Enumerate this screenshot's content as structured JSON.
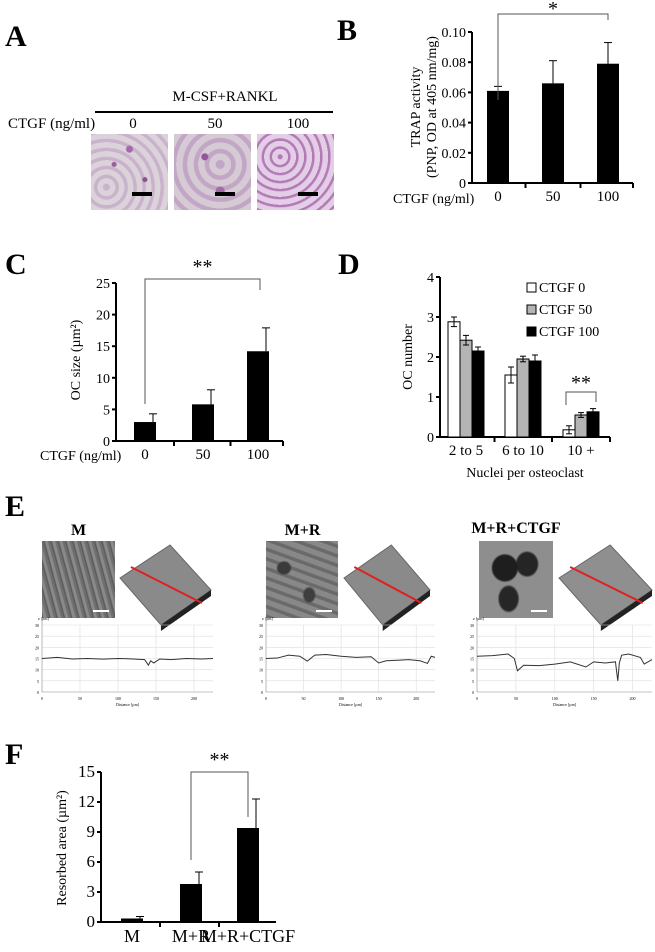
{
  "panel_labels": {
    "a": "A",
    "b": "B",
    "c": "C",
    "d": "D",
    "e": "E",
    "f": "F"
  },
  "panel_a": {
    "header": "M-CSF+RANKL",
    "row_label": "CTGF (ng/ml)",
    "columns": [
      "0",
      "50",
      "100"
    ]
  },
  "panel_e": {
    "groups": [
      "M",
      "M+R",
      "M+R+CTGF"
    ],
    "profile_ylabel": "z [µm]",
    "profile_xlabel": "Distance [µm]"
  },
  "chart_data": [
    {
      "id": "b",
      "type": "bar",
      "categories": [
        "0",
        "50",
        "100"
      ],
      "values": [
        0.061,
        0.066,
        0.079
      ],
      "errors": [
        0.003,
        0.015,
        0.014
      ],
      "xlabel": "CTGF (ng/ml)",
      "ylabel": [
        "TRAP activity",
        "(PNP, OD at 405 nm/mg)"
      ],
      "ylim": [
        0,
        0.1
      ],
      "yticks": [
        "0",
        "0.02",
        "0.04",
        "0.06",
        "0.08",
        "0.10"
      ],
      "significance": {
        "from": "0",
        "to": "100",
        "label": "*"
      }
    },
    {
      "id": "c",
      "type": "bar",
      "categories": [
        "0",
        "50",
        "100"
      ],
      "values": [
        3.0,
        5.8,
        14.2
      ],
      "errors": [
        1.3,
        2.3,
        3.7
      ],
      "xlabel": "CTGF (ng/ml)",
      "ylabel": [
        "OC size (µm²)"
      ],
      "ylim": [
        0,
        25
      ],
      "yticks": [
        "0",
        "5",
        "10",
        "15",
        "20",
        "25"
      ],
      "significance": {
        "from": "0",
        "to": "100",
        "label": "**"
      }
    },
    {
      "id": "d",
      "type": "bar",
      "categories": [
        "2 to 5",
        "6 to 10",
        "10 +"
      ],
      "series": [
        {
          "name": "CTGF 0",
          "color": "#ffffff",
          "values": [
            2.88,
            1.55,
            0.18
          ],
          "errors": [
            0.12,
            0.2,
            0.1
          ]
        },
        {
          "name": "CTGF 50",
          "color": "#b4b4b4",
          "values": [
            2.42,
            1.95,
            0.55
          ],
          "errors": [
            0.12,
            0.07,
            0.06
          ]
        },
        {
          "name": "CTGF 100",
          "color": "#000000",
          "values": [
            2.15,
            1.9,
            0.63
          ],
          "errors": [
            0.1,
            0.15,
            0.08
          ]
        }
      ],
      "xlabel": "Nuclei per osteoclast",
      "ylabel": [
        "OC number"
      ],
      "ylim": [
        0,
        4
      ],
      "yticks": [
        "0",
        "1",
        "2",
        "3",
        "4"
      ],
      "legend": "top-right",
      "significance": {
        "group": "10 +",
        "label": "**"
      }
    },
    {
      "id": "f",
      "type": "bar",
      "categories": [
        "M",
        "M+R",
        "M+R+CTGF"
      ],
      "values": [
        0.35,
        3.8,
        9.4
      ],
      "errors": [
        0.2,
        1.2,
        2.9
      ],
      "xlabel": "",
      "ylabel": [
        "Resorbed area (µm²)"
      ],
      "ylim": [
        0,
        15
      ],
      "yticks": [
        "0",
        "3",
        "6",
        "9",
        "12",
        "15"
      ],
      "significance": {
        "from": "M+R",
        "to": "M+R+CTGF",
        "label": "**"
      }
    },
    {
      "id": "e",
      "type": "line",
      "xlim": [
        0,
        225
      ],
      "ylim": [
        0,
        30
      ],
      "xticks": [
        "0",
        "50",
        "100",
        "150",
        "200"
      ],
      "yticks": [
        "0",
        "5",
        "10",
        "15",
        "20",
        "25",
        "30"
      ],
      "series": [
        {
          "name": "M",
          "x": [
            0,
            20,
            40,
            60,
            80,
            100,
            120,
            135,
            140,
            143,
            147,
            155,
            170,
            190,
            210,
            225
          ],
          "y": [
            15,
            15.5,
            14.8,
            15,
            14.7,
            15,
            14.8,
            14.5,
            12,
            14,
            13,
            14.8,
            14.5,
            15,
            14.8,
            15
          ]
        },
        {
          "name": "M+R",
          "x": [
            0,
            15,
            30,
            45,
            55,
            65,
            80,
            100,
            120,
            140,
            150,
            160,
            175,
            190,
            205,
            215,
            220,
            225
          ],
          "y": [
            15,
            15.2,
            16.5,
            16,
            13.8,
            16.5,
            16.8,
            16,
            15.5,
            15.8,
            13,
            14,
            14.2,
            14.5,
            14,
            12.8,
            16,
            15.5
          ]
        },
        {
          "name": "M+R+CTGF",
          "x": [
            0,
            20,
            40,
            48,
            52,
            60,
            80,
            100,
            120,
            140,
            150,
            165,
            178,
            181,
            183,
            186,
            195,
            210,
            215,
            225
          ],
          "y": [
            16,
            16.3,
            17,
            15,
            9.5,
            12,
            11.8,
            12.5,
            13.5,
            11.2,
            13.5,
            13,
            13.5,
            5,
            13,
            16.5,
            17,
            15.5,
            12.5,
            14.5
          ]
        }
      ]
    }
  ]
}
